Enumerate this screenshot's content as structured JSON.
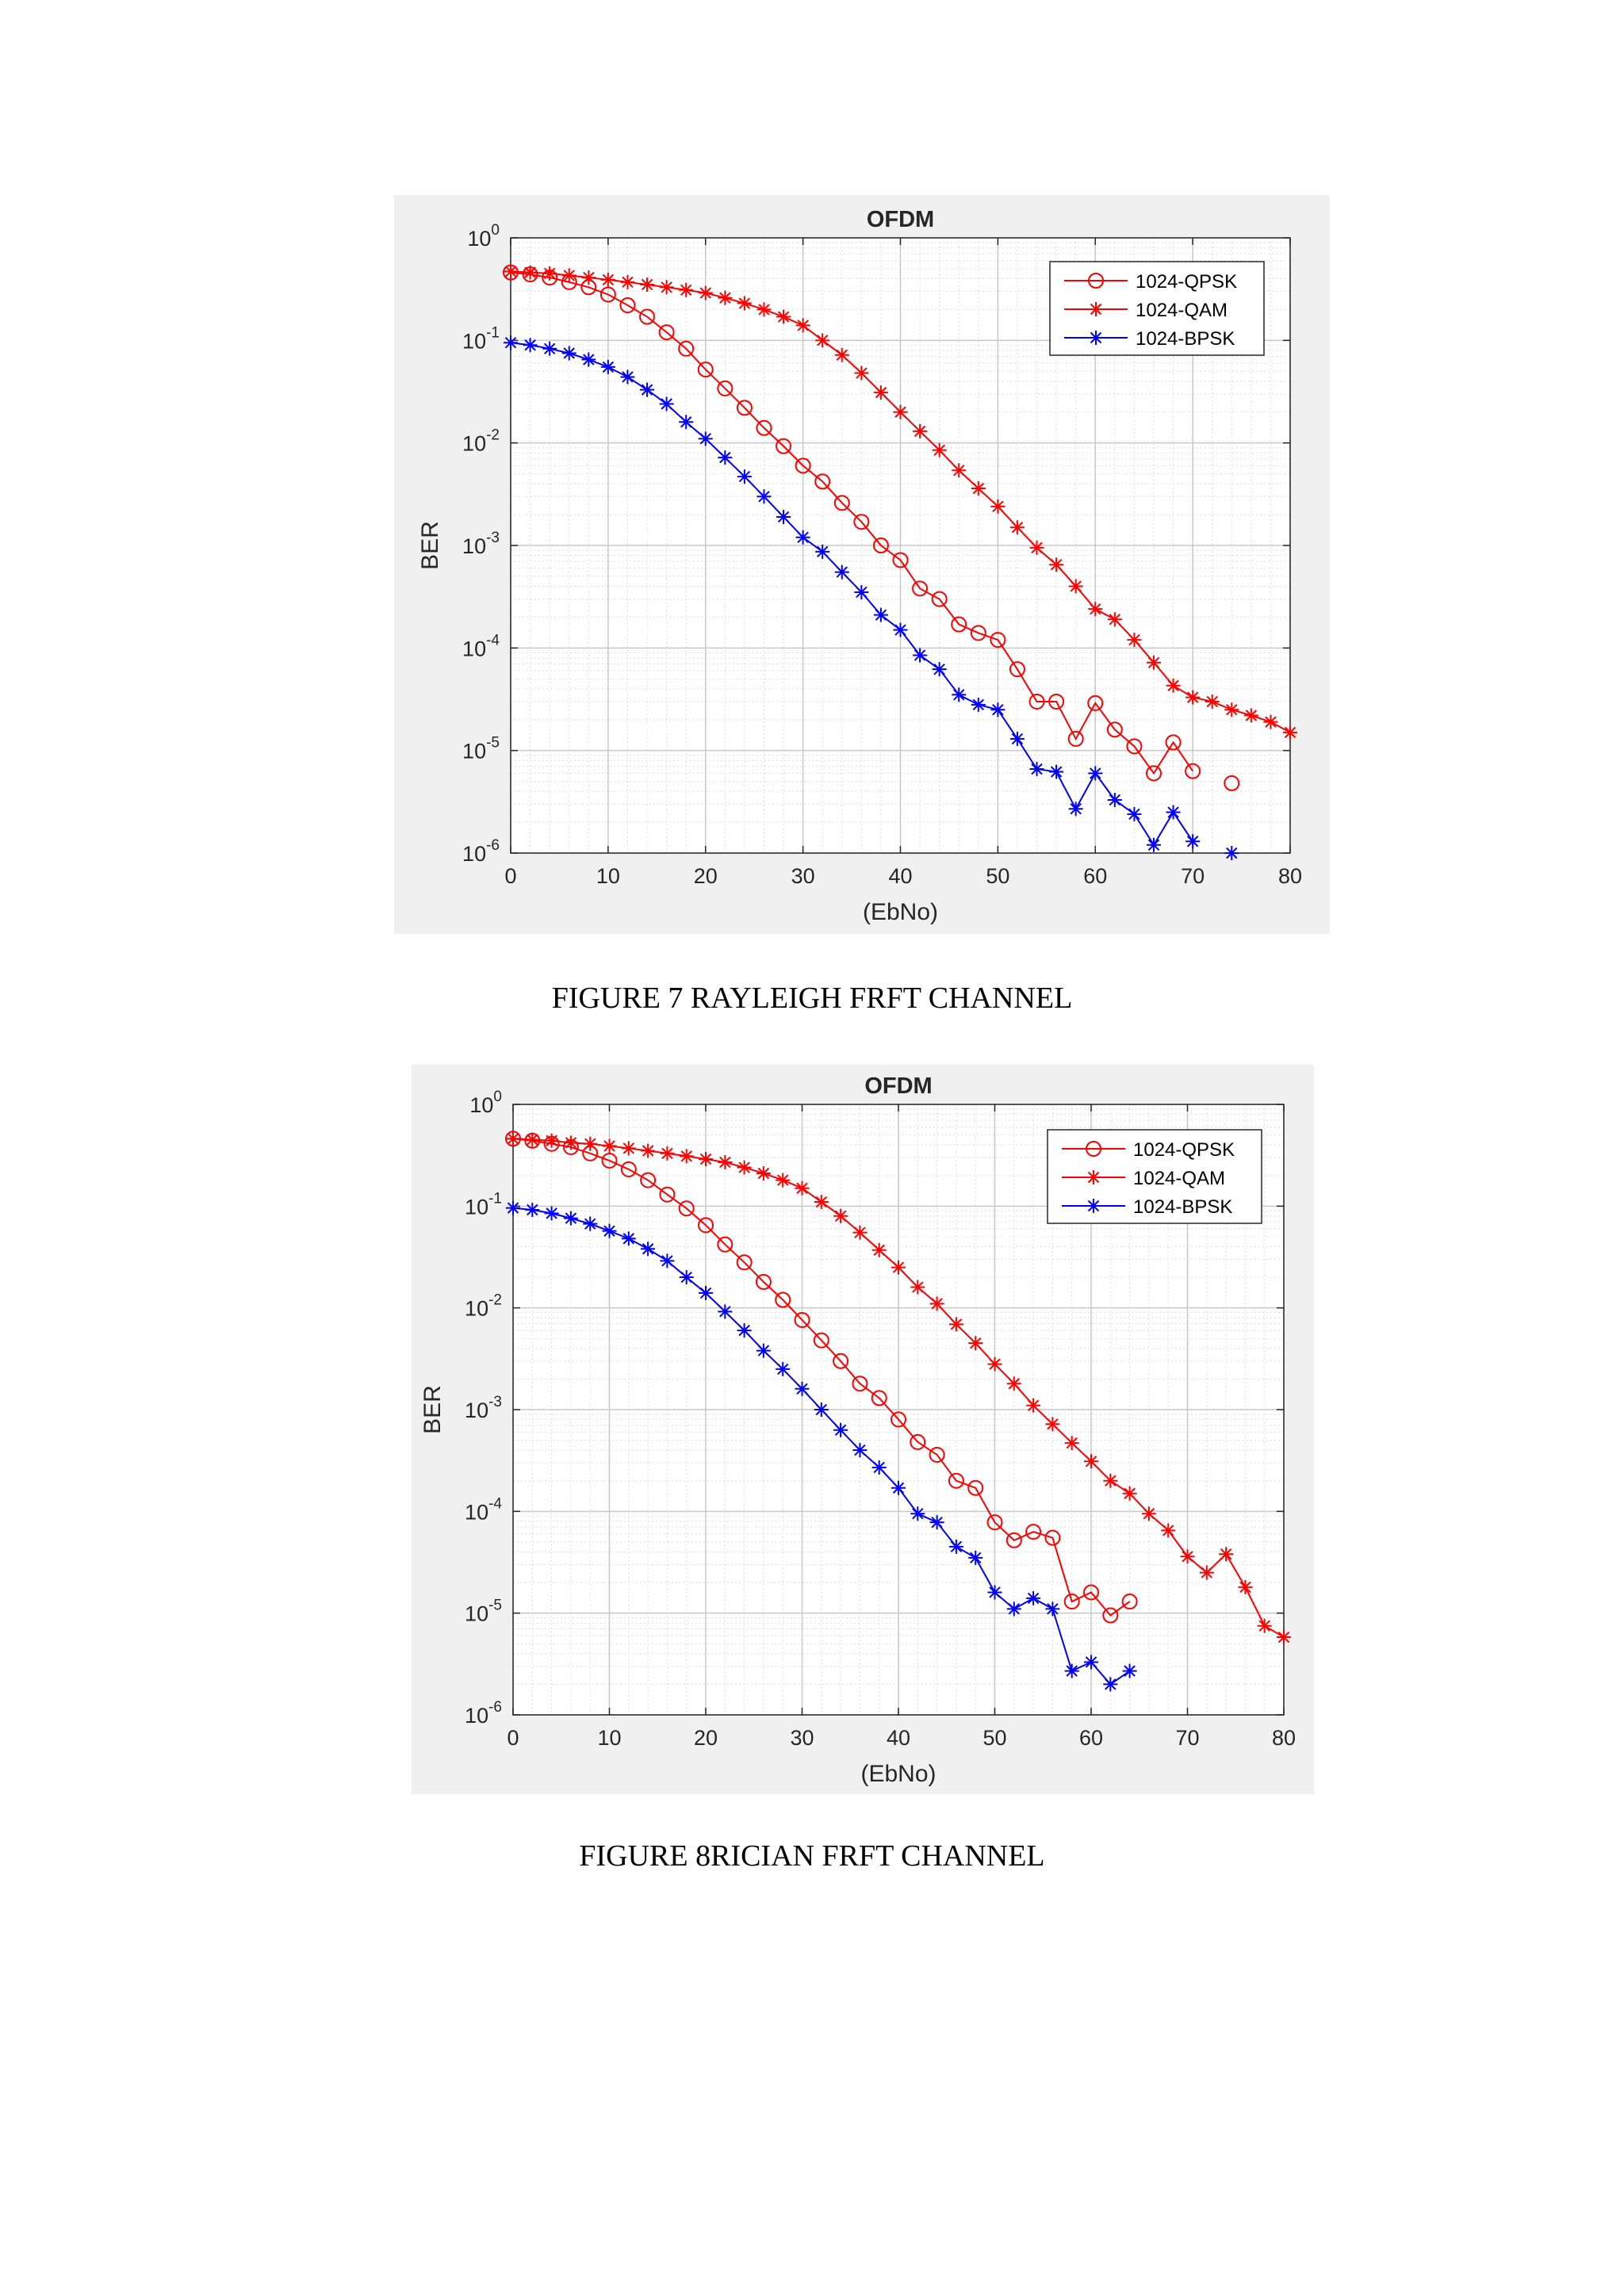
{
  "figures": [
    {
      "caption": "FIGURE 7 RAYLEIGH FRFT CHANNEL",
      "chart_data": {
        "type": "line",
        "title": "OFDM",
        "xlabel": "(EbNo)",
        "ylabel": "BER",
        "xlim": [
          0,
          80
        ],
        "ylim": [
          1e-06,
          1
        ],
        "y_scale": "log",
        "grid": "on (major and minor)",
        "legend_position": "top-right",
        "x_ticks": [
          "0",
          "10",
          "20",
          "30",
          "40",
          "50",
          "60",
          "70",
          "80"
        ],
        "y_ticks": [
          {
            "base": "10",
            "exp": "0"
          },
          {
            "base": "10",
            "exp": "-1"
          },
          {
            "base": "10",
            "exp": "-2"
          },
          {
            "base": "10",
            "exp": "-3"
          },
          {
            "base": "10",
            "exp": "-4"
          },
          {
            "base": "10",
            "exp": "-5"
          },
          {
            "base": "10",
            "exp": "-6"
          }
        ],
        "series": [
          {
            "name": "1024-QPSK",
            "color": "#ff0000",
            "marker": "circle",
            "x": [
              0,
              2,
              4,
              6,
              8,
              10,
              12,
              14,
              16,
              18,
              20,
              22,
              24,
              26,
              28,
              30,
              32,
              34,
              36,
              38,
              40,
              42,
              44,
              46,
              48,
              50,
              52,
              54,
              56,
              58,
              60,
              62,
              64,
              66,
              68,
              70,
              72,
              74
            ],
            "y": [
              0.46,
              0.44,
              0.41,
              0.37,
              0.33,
              0.28,
              0.22,
              0.17,
              0.12,
              0.083,
              0.052,
              0.034,
              0.022,
              0.014,
              0.0093,
              0.006,
              0.0042,
              0.0026,
              0.0017,
              0.001,
              0.00072,
              0.00038,
              0.0003,
              0.00017,
              0.00014,
              0.00012,
              6.2e-05,
              3e-05,
              3e-05,
              1.3e-05,
              2.9e-05,
              1.6e-05,
              1.1e-05,
              6e-06,
              1.2e-05,
              6.3e-06,
              null,
              4.8e-06
            ]
          },
          {
            "name": "1024-QAM",
            "color": "#ff0000",
            "marker": "star",
            "x": [
              0,
              2,
              4,
              6,
              8,
              10,
              12,
              14,
              16,
              18,
              20,
              22,
              24,
              26,
              28,
              30,
              32,
              34,
              36,
              38,
              40,
              42,
              44,
              46,
              48,
              50,
              52,
              54,
              56,
              58,
              60,
              62,
              64,
              66,
              68,
              70,
              72,
              74,
              76,
              78,
              80
            ],
            "y": [
              0.47,
              0.46,
              0.45,
              0.43,
              0.41,
              0.39,
              0.37,
              0.35,
              0.33,
              0.31,
              0.29,
              0.26,
              0.23,
              0.2,
              0.17,
              0.14,
              0.1,
              0.072,
              0.048,
              0.031,
              0.02,
              0.013,
              0.0085,
              0.0054,
              0.0036,
              0.0024,
              0.0015,
              0.00095,
              0.00065,
              0.0004,
              0.00024,
              0.00019,
              0.00012,
              7.2e-05,
              4.3e-05,
              3.3e-05,
              3e-05,
              2.5e-05,
              2.2e-05,
              1.9e-05,
              1.5e-05
            ]
          },
          {
            "name": "1024-BPSK",
            "color": "#0000ff",
            "marker": "star",
            "x": [
              0,
              2,
              4,
              6,
              8,
              10,
              12,
              14,
              16,
              18,
              20,
              22,
              24,
              26,
              28,
              30,
              32,
              34,
              36,
              38,
              40,
              42,
              44,
              46,
              48,
              50,
              52,
              54,
              56,
              58,
              60,
              62,
              64,
              66,
              68,
              70,
              72,
              74
            ],
            "y": [
              0.095,
              0.09,
              0.083,
              0.075,
              0.065,
              0.055,
              0.044,
              0.033,
              0.024,
              0.016,
              0.011,
              0.0072,
              0.0047,
              0.003,
              0.0019,
              0.0012,
              0.00087,
              0.00055,
              0.00035,
              0.00021,
              0.00015,
              8.5e-05,
              6.2e-05,
              3.5e-05,
              2.8e-05,
              2.5e-05,
              1.3e-05,
              6.6e-06,
              6.2e-06,
              2.7e-06,
              6e-06,
              3.3e-06,
              2.4e-06,
              1.2e-06,
              2.5e-06,
              1.3e-06,
              null,
              1e-06
            ]
          }
        ]
      }
    },
    {
      "caption": "FIGURE 8RICIAN FRFT CHANNEL",
      "chart_data": {
        "type": "line",
        "title": "OFDM",
        "xlabel": "(EbNo)",
        "ylabel": "BER",
        "xlim": [
          0,
          80
        ],
        "ylim": [
          1e-06,
          1
        ],
        "y_scale": "log",
        "grid": "on (major and minor)",
        "legend_position": "top-right",
        "x_ticks": [
          "0",
          "10",
          "20",
          "30",
          "40",
          "50",
          "60",
          "70",
          "80"
        ],
        "y_ticks": [
          {
            "base": "10",
            "exp": "0"
          },
          {
            "base": "10",
            "exp": "-1"
          },
          {
            "base": "10",
            "exp": "-2"
          },
          {
            "base": "10",
            "exp": "-3"
          },
          {
            "base": "10",
            "exp": "-4"
          },
          {
            "base": "10",
            "exp": "-5"
          },
          {
            "base": "10",
            "exp": "-6"
          }
        ],
        "series": [
          {
            "name": "1024-QPSK",
            "color": "#ff0000",
            "marker": "circle",
            "x": [
              0,
              2,
              4,
              6,
              8,
              10,
              12,
              14,
              16,
              18,
              20,
              22,
              24,
              26,
              28,
              30,
              32,
              34,
              36,
              38,
              40,
              42,
              44,
              46,
              48,
              50,
              52,
              54,
              56,
              58,
              60,
              62,
              64
            ],
            "y": [
              0.46,
              0.44,
              0.41,
              0.38,
              0.33,
              0.28,
              0.23,
              0.18,
              0.13,
              0.095,
              0.065,
              0.042,
              0.028,
              0.018,
              0.012,
              0.0076,
              0.0048,
              0.003,
              0.0018,
              0.0013,
              0.0008,
              0.00048,
              0.00036,
              0.0002,
              0.00017,
              7.8e-05,
              5.2e-05,
              6.3e-05,
              5.5e-05,
              1.3e-05,
              1.6e-05,
              9.5e-06,
              1.3e-05
            ]
          },
          {
            "name": "1024-QAM",
            "color": "#ff0000",
            "marker": "star",
            "x": [
              0,
              2,
              4,
              6,
              8,
              10,
              12,
              14,
              16,
              18,
              20,
              22,
              24,
              26,
              28,
              30,
              32,
              34,
              36,
              38,
              40,
              42,
              44,
              46,
              48,
              50,
              52,
              54,
              56,
              58,
              60,
              62,
              64,
              66,
              68,
              70,
              72,
              74,
              76,
              78,
              80
            ],
            "y": [
              0.46,
              0.45,
              0.44,
              0.42,
              0.41,
              0.39,
              0.37,
              0.35,
              0.33,
              0.31,
              0.29,
              0.27,
              0.24,
              0.21,
              0.18,
              0.15,
              0.11,
              0.08,
              0.055,
              0.037,
              0.025,
              0.016,
              0.011,
              0.0069,
              0.0045,
              0.0028,
              0.0018,
              0.0011,
              0.00072,
              0.00047,
              0.00031,
              0.0002,
              0.00015,
              9.5e-05,
              6.5e-05,
              3.6e-05,
              2.5e-05,
              3.8e-05,
              1.8e-05,
              7.5e-06,
              5.8e-06
            ]
          },
          {
            "name": "1024-BPSK",
            "color": "#0000ff",
            "marker": "star",
            "x": [
              0,
              2,
              4,
              6,
              8,
              10,
              12,
              14,
              16,
              18,
              20,
              22,
              24,
              26,
              28,
              30,
              32,
              34,
              36,
              38,
              40,
              42,
              44,
              46,
              48,
              50,
              52,
              54,
              56,
              58,
              60,
              62,
              64
            ],
            "y": [
              0.096,
              0.092,
              0.085,
              0.076,
              0.067,
              0.057,
              0.048,
              0.038,
              0.029,
              0.02,
              0.014,
              0.0092,
              0.006,
              0.0038,
              0.0025,
              0.0016,
              0.001,
              0.00063,
              0.0004,
              0.00027,
              0.00017,
              9.5e-05,
              7.8e-05,
              4.5e-05,
              3.5e-05,
              1.6e-05,
              1.1e-05,
              1.4e-05,
              1.1e-05,
              2.7e-06,
              3.3e-06,
              2e-06,
              2.7e-06
            ]
          }
        ]
      }
    }
  ]
}
